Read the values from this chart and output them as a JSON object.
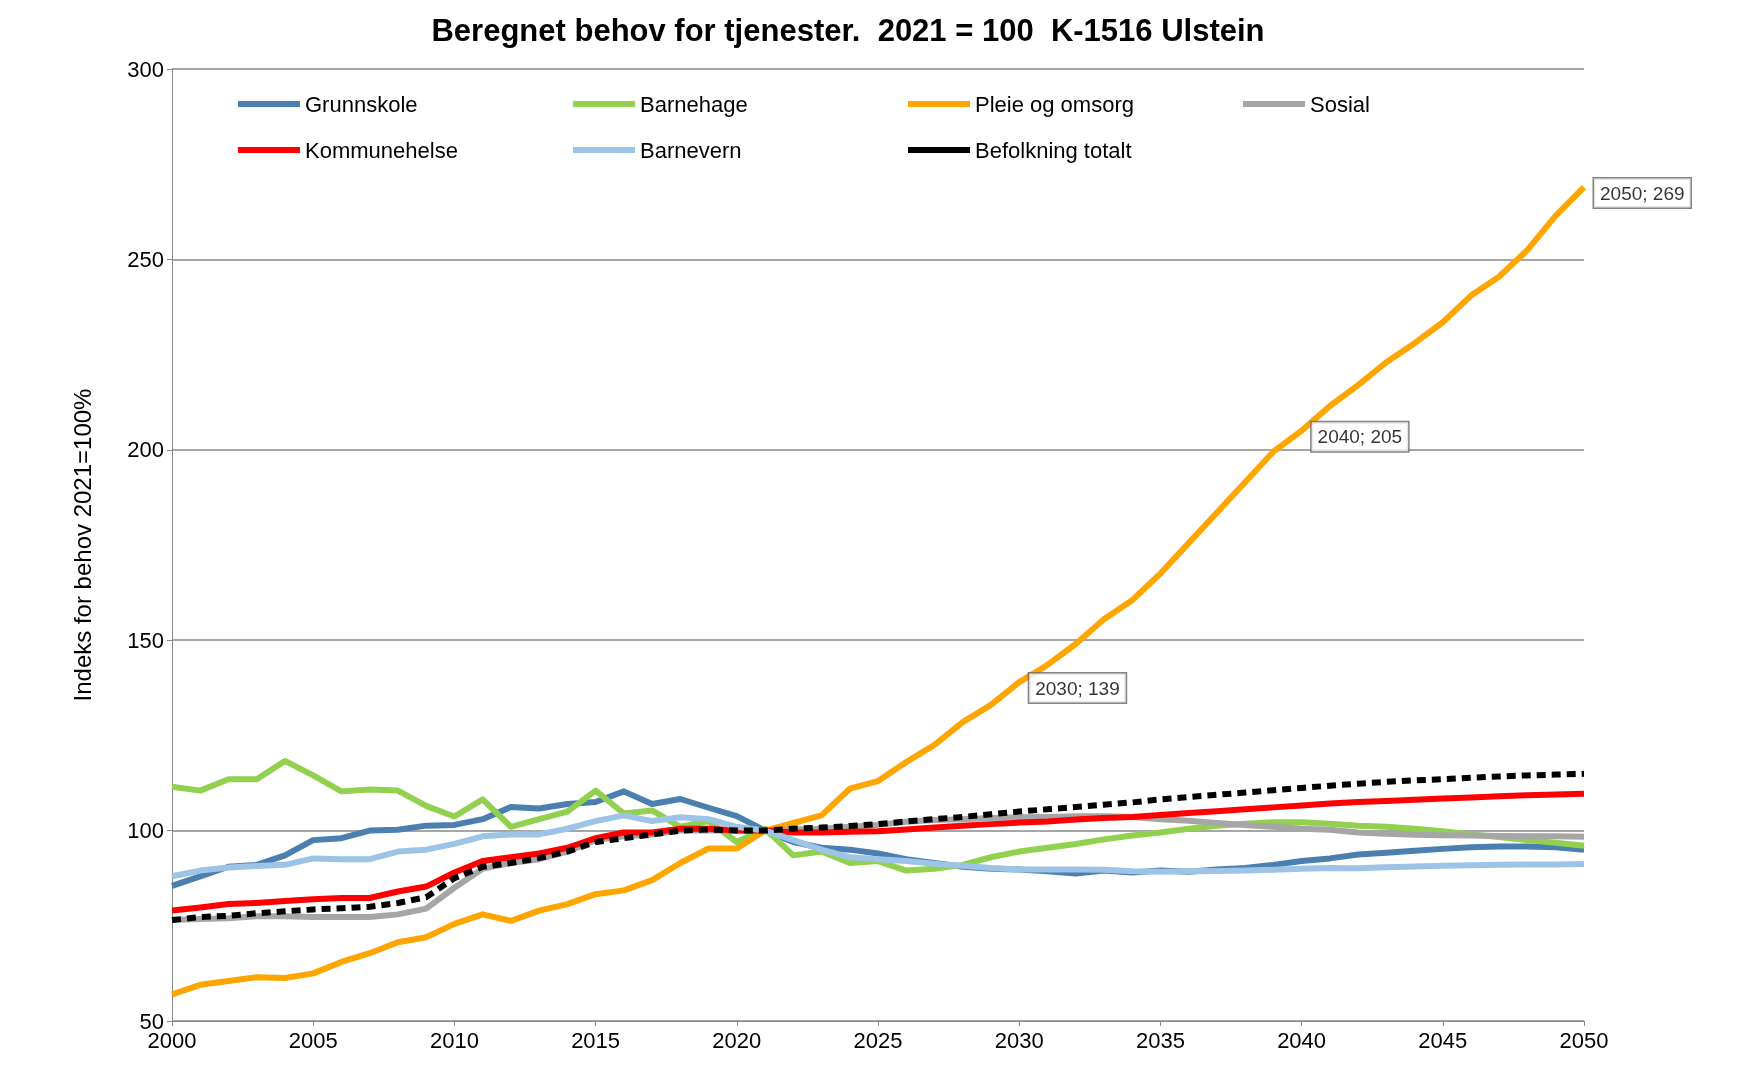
{
  "chart_data": {
    "type": "line",
    "title": "Beregnet behov for tjenester.  2021 = 100  K-1516 Ulstein",
    "ylabel": "Indeks for behov 2021=100%",
    "x": [
      2000,
      2001,
      2002,
      2003,
      2004,
      2005,
      2006,
      2007,
      2008,
      2009,
      2010,
      2011,
      2012,
      2013,
      2014,
      2015,
      2016,
      2017,
      2018,
      2019,
      2020,
      2021,
      2022,
      2023,
      2024,
      2025,
      2026,
      2027,
      2028,
      2029,
      2030,
      2031,
      2032,
      2033,
      2034,
      2035,
      2036,
      2037,
      2038,
      2039,
      2040,
      2041,
      2042,
      2043,
      2044,
      2045,
      2046,
      2047,
      2048,
      2049,
      2050
    ],
    "xlim": [
      2000,
      2050
    ],
    "xticks": [
      2000,
      2005,
      2010,
      2015,
      2020,
      2025,
      2030,
      2035,
      2040,
      2045,
      2050
    ],
    "ylim": [
      50,
      300
    ],
    "yticks": [
      50,
      100,
      150,
      200,
      250,
      300
    ],
    "grid": "y",
    "legend": "top",
    "marker": "none",
    "series": [
      {
        "name": "Grunnskole",
        "color": "#4a7fb0",
        "values": [
          85.5,
          88,
          90.5,
          91,
          93.5,
          97.5,
          98,
          100,
          100.2,
          101.3,
          101.5,
          103,
          106.2,
          105.8,
          107,
          107.5,
          110.3,
          107,
          108.3,
          106,
          103.8,
          100,
          97,
          95.5,
          95,
          94,
          92.5,
          91.5,
          90.5,
          90,
          89.8,
          89.3,
          88.7,
          89.5,
          89,
          89.5,
          89.2,
          89.8,
          90.2,
          91,
          92,
          92.7,
          93.7,
          94.2,
          94.7,
          95.2,
          95.6,
          95.8,
          95.8,
          95.6,
          95
        ]
      },
      {
        "name": "Barnehage",
        "color": "#92d050",
        "values": [
          111.5,
          110.5,
          113.5,
          113.5,
          118.3,
          114.5,
          110.3,
          110.8,
          110.5,
          106.5,
          103.7,
          108.2,
          101,
          103,
          105,
          110.5,
          104.5,
          105.3,
          101,
          102.5,
          97,
          100.5,
          93.5,
          94.5,
          91.5,
          92,
          89.5,
          90,
          91,
          93,
          94.5,
          95.5,
          96.5,
          97.7,
          98.7,
          99.5,
          100.5,
          101.3,
          101.8,
          102.2,
          102.2,
          101.8,
          101.3,
          101,
          100.5,
          99.8,
          99,
          98.3,
          97.5,
          96.8,
          96
        ]
      },
      {
        "name": "Pleie og omsorg",
        "color": "#ffa500",
        "values": [
          57,
          59.5,
          60.5,
          61.5,
          61.3,
          62.5,
          65.5,
          67.8,
          70.7,
          72,
          75.5,
          78,
          76.3,
          79,
          80.7,
          83.3,
          84.3,
          87,
          91.5,
          95.3,
          95.3,
          100,
          102,
          104,
          111,
          113,
          118,
          122.5,
          128.5,
          133,
          139,
          143.5,
          149,
          155.5,
          160.5,
          167.5,
          175.5,
          183.5,
          191.5,
          199.5,
          205,
          211.5,
          217,
          223,
          228,
          233.5,
          240.5,
          245.5,
          252.5,
          261.5,
          269
        ]
      },
      {
        "name": "Sosial",
        "color": "#a6a6a6",
        "values": [
          76.5,
          76.8,
          77,
          77.5,
          77.5,
          77.3,
          77.3,
          77.3,
          78,
          79.5,
          85,
          90,
          91.5,
          92.5,
          94.5,
          97.5,
          98.5,
          99,
          100,
          100,
          100,
          100,
          100.3,
          100.5,
          101,
          101.5,
          102.3,
          102.8,
          103,
          103.3,
          103.5,
          103.6,
          103.8,
          103.8,
          103.6,
          103,
          102.6,
          102,
          101.5,
          101,
          100.5,
          100.2,
          99.5,
          99.2,
          98.9,
          98.8,
          98.7,
          98.6,
          98.5,
          98.5,
          98.4
        ]
      },
      {
        "name": "Kommunehelse",
        "color": "#ff0000",
        "values": [
          79,
          79.8,
          80.7,
          81,
          81.5,
          82,
          82.3,
          82.3,
          84,
          85.3,
          89,
          92,
          93,
          94,
          95.5,
          98,
          99.5,
          99.5,
          100.5,
          100.5,
          100,
          100,
          99.5,
          99.5,
          99.7,
          99.8,
          100.3,
          100.8,
          101.3,
          101.7,
          102.1,
          102.4,
          102.9,
          103.3,
          103.6,
          104.1,
          104.6,
          105.1,
          105.6,
          106.1,
          106.6,
          107.1,
          107.5,
          107.8,
          108.1,
          108.4,
          108.7,
          109,
          109.3,
          109.5,
          109.7
        ]
      },
      {
        "name": "Barnevern",
        "color": "#9dc3e6",
        "values": [
          88,
          89.5,
          90.3,
          90.7,
          91,
          92.7,
          92.5,
          92.5,
          94.5,
          95,
          96.5,
          98.5,
          99,
          99,
          100.5,
          102.5,
          104,
          102.5,
          103.5,
          103,
          101,
          100,
          97.5,
          95,
          93,
          92.5,
          92,
          91.3,
          90.8,
          90.2,
          89.8,
          89.8,
          89.8,
          89.7,
          89.3,
          89.2,
          89.3,
          89.4,
          89.5,
          89.7,
          90,
          90.2,
          90.1,
          90.4,
          90.6,
          90.8,
          90.9,
          91,
          91.1,
          91.1,
          91.2
        ]
      },
      {
        "name": "Befolkning totalt",
        "color": "#000000",
        "line_style": "dashed",
        "values": [
          76.5,
          77.3,
          77.6,
          78.3,
          78.8,
          79.3,
          79.6,
          80,
          81,
          82.5,
          87.5,
          90.5,
          91.5,
          92.8,
          94.5,
          97,
          98,
          99,
          100,
          100.3,
          100,
          100,
          100.5,
          100.8,
          101.2,
          101.7,
          102.4,
          103,
          103.6,
          104.3,
          105,
          105.6,
          106.2,
          106.8,
          107.4,
          108.2,
          108.8,
          109.4,
          110,
          110.6,
          111.2,
          111.8,
          112.3,
          112.8,
          113.2,
          113.5,
          113.9,
          114.2,
          114.5,
          114.7,
          114.9
        ]
      }
    ],
    "annotations": [
      {
        "text": "2030; 139",
        "x": 2030,
        "y": 139
      },
      {
        "text": "2040; 205",
        "x": 2040,
        "y": 205
      },
      {
        "text": "2050; 269",
        "x": 2050,
        "y": 269
      }
    ]
  }
}
